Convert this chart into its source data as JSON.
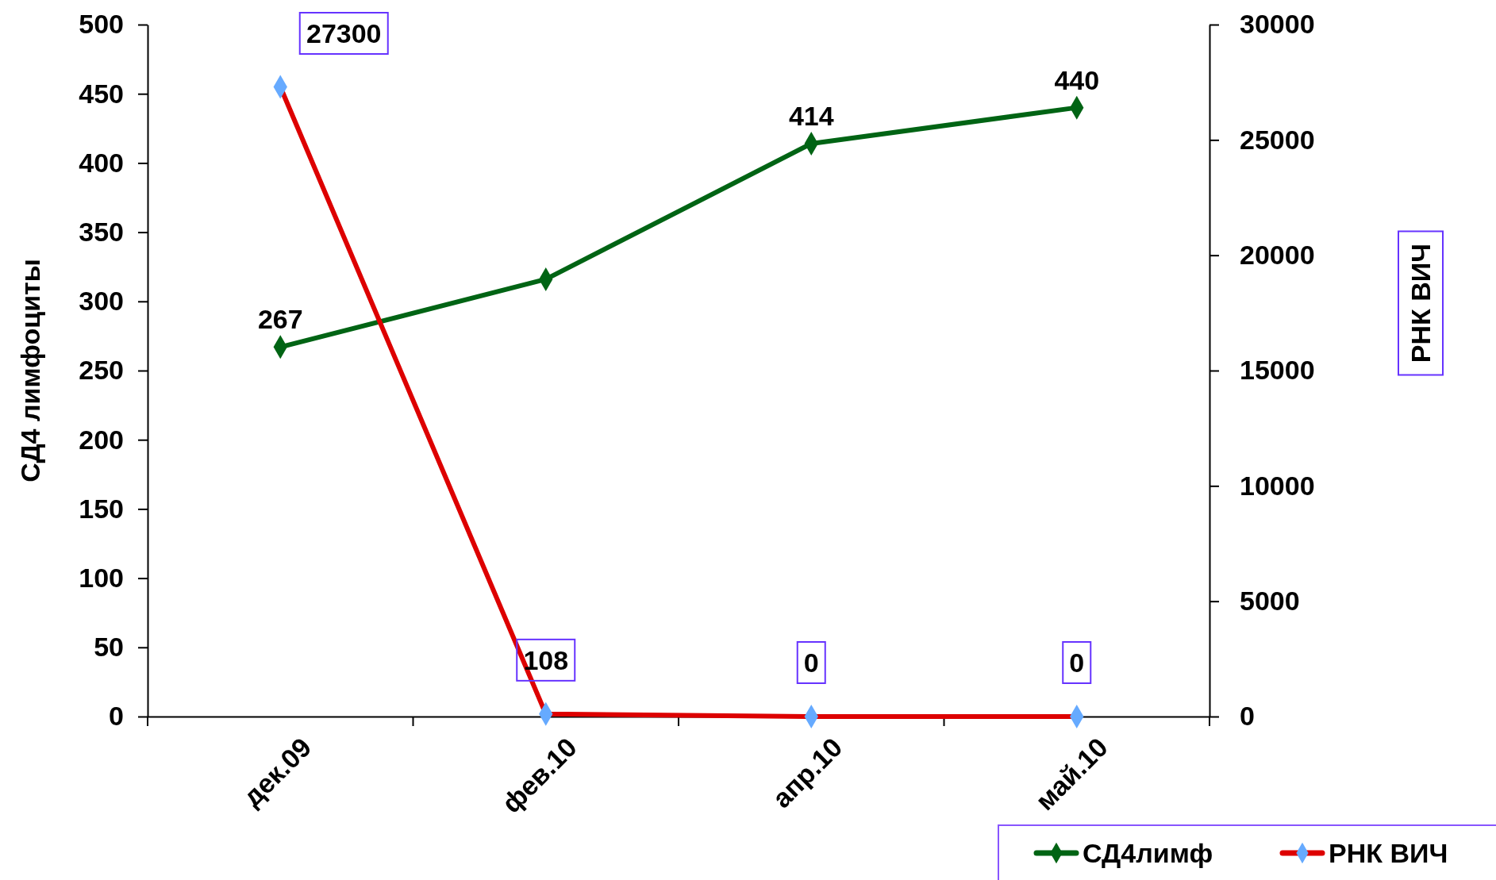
{
  "chart_data": {
    "type": "line",
    "ylabel": "СД4 лимфоциты",
    "y2label": "РНК ВИЧ",
    "categories": [
      "дек.09",
      "фев.10",
      "апр.10",
      "май.10"
    ],
    "series": [
      {
        "name": "СД4лимф",
        "color": "#006414",
        "values": [
          267,
          316,
          414,
          440
        ],
        "value_labels": [
          "267",
          null,
          "414",
          "440"
        ]
      },
      {
        "name": "РНК ВИЧ",
        "color": "#dd0000",
        "axis": "y2",
        "values": [
          27300,
          108,
          0,
          0
        ],
        "colors": [
          "#66aaff",
          "#66aaff",
          "#66aaff",
          "#66aaff"
        ],
        "value_labels": [
          "27300",
          "108",
          "0",
          "0"
        ]
      }
    ],
    "ylim": [
      0,
      500
    ],
    "yticks": [
      0,
      50,
      100,
      150,
      200,
      250,
      300,
      350,
      400,
      450,
      500
    ],
    "y2lim": [
      0,
      30000
    ],
    "y2ticks": [
      0,
      5000,
      10000,
      15000,
      20000,
      25000,
      30000
    ],
    "grid": false,
    "legend": "bottom right",
    "marker": "diamond",
    "line_style": "solid"
  }
}
